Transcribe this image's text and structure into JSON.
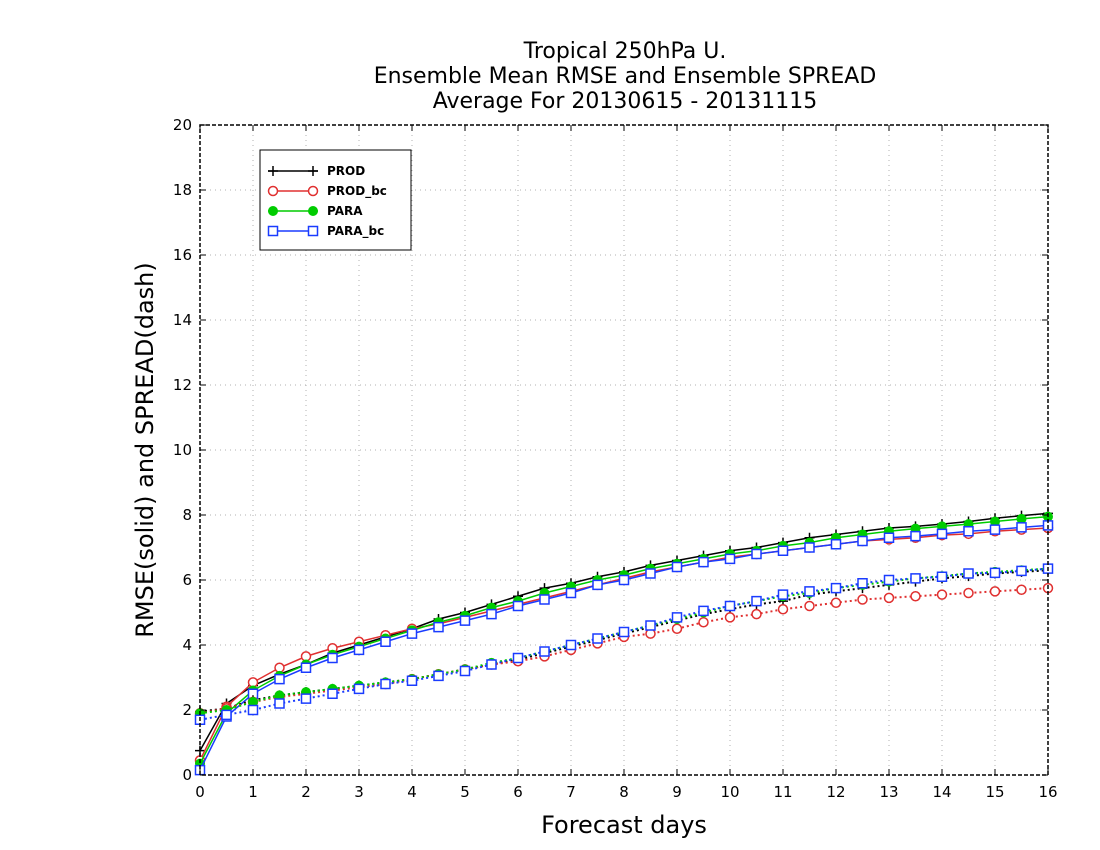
{
  "chart_data": {
    "type": "line",
    "title": [
      "Tropical 250hPa U.",
      "Ensemble Mean RMSE and Ensemble SPREAD",
      "Average For 20130615 - 20131115"
    ],
    "xlabel": "Forecast days",
    "ylabel": "RMSE(solid) and SPREAD(dash)",
    "xlim": [
      0,
      16
    ],
    "ylim": [
      0,
      20
    ],
    "xticks": [
      "0",
      "1",
      "2",
      "3",
      "4",
      "5",
      "6",
      "7",
      "8",
      "9",
      "10",
      "11",
      "12",
      "13",
      "14",
      "15",
      "16"
    ],
    "yticks": [
      "0",
      "2",
      "4",
      "6",
      "8",
      "10",
      "12",
      "14",
      "16",
      "18",
      "20"
    ],
    "grid": true,
    "legend_position": "top-left",
    "x": [
      0,
      0.5,
      1,
      1.5,
      2,
      2.5,
      3,
      3.5,
      4,
      4.5,
      5,
      5.5,
      6,
      6.5,
      7,
      7.5,
      8,
      8.5,
      9,
      9.5,
      10,
      10.5,
      11,
      11.5,
      12,
      12.5,
      13,
      13.5,
      14,
      14.5,
      15,
      15.5,
      16
    ],
    "series": [
      {
        "name": "PROD",
        "style": "solid",
        "color": "#000000",
        "marker": "plus",
        "values": [
          0.75,
          2.2,
          2.75,
          3.1,
          3.4,
          3.75,
          4.0,
          4.25,
          4.5,
          4.8,
          5.0,
          5.25,
          5.5,
          5.75,
          5.9,
          6.1,
          6.25,
          6.45,
          6.6,
          6.75,
          6.9,
          7.0,
          7.15,
          7.3,
          7.4,
          7.5,
          7.6,
          7.65,
          7.72,
          7.8,
          7.9,
          7.98,
          8.05
        ]
      },
      {
        "name": "PROD_bc",
        "style": "solid",
        "color": "#e03030",
        "marker": "circle",
        "values": [
          0.45,
          2.1,
          2.85,
          3.3,
          3.65,
          3.9,
          4.1,
          4.3,
          4.5,
          4.65,
          4.85,
          5.05,
          5.25,
          5.45,
          5.65,
          5.85,
          6.05,
          6.25,
          6.4,
          6.55,
          6.7,
          6.8,
          6.9,
          7.0,
          7.1,
          7.2,
          7.25,
          7.3,
          7.38,
          7.42,
          7.5,
          7.55,
          7.6
        ]
      },
      {
        "name": "PARA",
        "style": "solid",
        "color": "#00cc00",
        "marker": "dot",
        "values": [
          0.35,
          1.9,
          2.6,
          3.05,
          3.4,
          3.7,
          3.95,
          4.2,
          4.45,
          4.7,
          4.9,
          5.15,
          5.35,
          5.6,
          5.8,
          6.0,
          6.15,
          6.35,
          6.5,
          6.65,
          6.8,
          6.9,
          7.05,
          7.15,
          7.3,
          7.4,
          7.5,
          7.58,
          7.65,
          7.72,
          7.8,
          7.88,
          7.95
        ]
      },
      {
        "name": "PARA_bc",
        "style": "solid",
        "color": "#1a3cff",
        "marker": "square",
        "values": [
          0.15,
          1.8,
          2.5,
          2.95,
          3.3,
          3.6,
          3.85,
          4.1,
          4.35,
          4.55,
          4.75,
          4.95,
          5.2,
          5.4,
          5.6,
          5.85,
          6.0,
          6.2,
          6.4,
          6.55,
          6.65,
          6.8,
          6.9,
          7.0,
          7.1,
          7.2,
          7.3,
          7.35,
          7.42,
          7.5,
          7.55,
          7.62,
          7.68
        ]
      },
      {
        "name": "PROD",
        "style": "dotted",
        "color": "#000000",
        "marker": "plus",
        "values": [
          1.95,
          2.05,
          2.3,
          2.45,
          2.55,
          2.65,
          2.75,
          2.85,
          2.95,
          3.1,
          3.25,
          3.4,
          3.55,
          3.75,
          3.95,
          4.15,
          4.35,
          4.55,
          4.75,
          4.95,
          5.1,
          5.25,
          5.35,
          5.55,
          5.65,
          5.75,
          5.85,
          5.95,
          6.05,
          6.12,
          6.2,
          6.25,
          6.3
        ]
      },
      {
        "name": "PROD_bc",
        "style": "dotted",
        "color": "#e03030",
        "marker": "circle",
        "values": [
          1.9,
          2.05,
          2.25,
          2.4,
          2.5,
          2.6,
          2.7,
          2.8,
          2.95,
          3.1,
          3.25,
          3.4,
          3.5,
          3.65,
          3.85,
          4.05,
          4.25,
          4.35,
          4.5,
          4.7,
          4.85,
          4.95,
          5.1,
          5.2,
          5.3,
          5.4,
          5.45,
          5.5,
          5.55,
          5.6,
          5.65,
          5.7,
          5.75
        ]
      },
      {
        "name": "PARA",
        "style": "dotted",
        "color": "#00cc00",
        "marker": "dot",
        "values": [
          1.9,
          2.0,
          2.25,
          2.45,
          2.55,
          2.65,
          2.75,
          2.85,
          2.95,
          3.1,
          3.25,
          3.45,
          3.6,
          3.8,
          4.0,
          4.2,
          4.4,
          4.6,
          4.8,
          5.0,
          5.2,
          5.35,
          5.5,
          5.6,
          5.75,
          5.85,
          5.95,
          6.05,
          6.12,
          6.2,
          6.25,
          6.3,
          6.35
        ]
      },
      {
        "name": "PARA_bc",
        "style": "dotted",
        "color": "#1a3cff",
        "marker": "square",
        "values": [
          1.7,
          1.85,
          2.0,
          2.2,
          2.35,
          2.5,
          2.65,
          2.8,
          2.9,
          3.05,
          3.2,
          3.4,
          3.6,
          3.8,
          4.0,
          4.2,
          4.4,
          4.6,
          4.85,
          5.05,
          5.2,
          5.35,
          5.55,
          5.65,
          5.75,
          5.9,
          6.0,
          6.05,
          6.1,
          6.2,
          6.22,
          6.28,
          6.35
        ]
      }
    ],
    "legend": [
      {
        "label": "PROD",
        "color": "#000000",
        "marker": "plus"
      },
      {
        "label": "PROD_bc",
        "color": "#e03030",
        "marker": "circle"
      },
      {
        "label": "PARA",
        "color": "#00cc00",
        "marker": "dot"
      },
      {
        "label": "PARA_bc",
        "color": "#1a3cff",
        "marker": "square"
      }
    ]
  }
}
